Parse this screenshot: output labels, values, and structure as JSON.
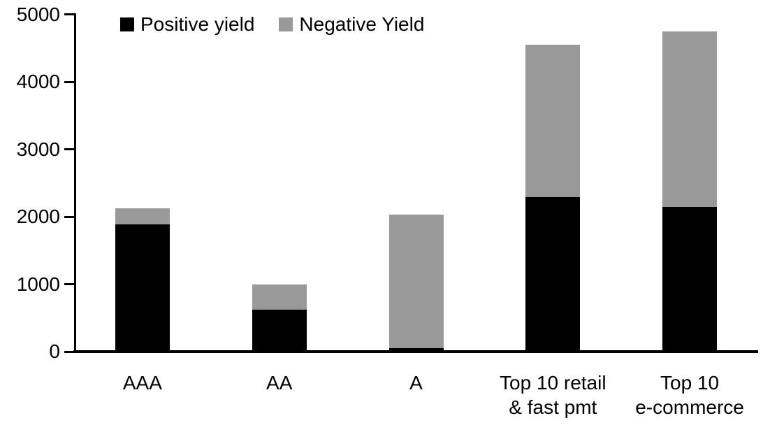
{
  "chart_data": {
    "type": "bar",
    "stacked": true,
    "title": "",
    "xlabel": "",
    "ylabel": "",
    "categories": [
      "AAA",
      "AA",
      "A",
      "Top 10 retail\n& fast pmt",
      "Top 10\ne-commerce"
    ],
    "series": [
      {
        "name": "Positive yield",
        "color": "#000000",
        "values": [
          1890,
          620,
          50,
          2290,
          2145
        ]
      },
      {
        "name": "Negative Yield",
        "color": "#999999",
        "values": [
          230,
          380,
          1980,
          2260,
          2600
        ]
      }
    ],
    "totals": [
      2120,
      1000,
      2030,
      4550,
      4745
    ],
    "ylim": [
      0,
      5000
    ],
    "yticks": [
      "0",
      "1000",
      "2000",
      "3000",
      "4000",
      "5000"
    ],
    "legend_position": "top-left-inside",
    "grid": false,
    "axis_color": "#000000",
    "background_color": "#ffffff"
  }
}
